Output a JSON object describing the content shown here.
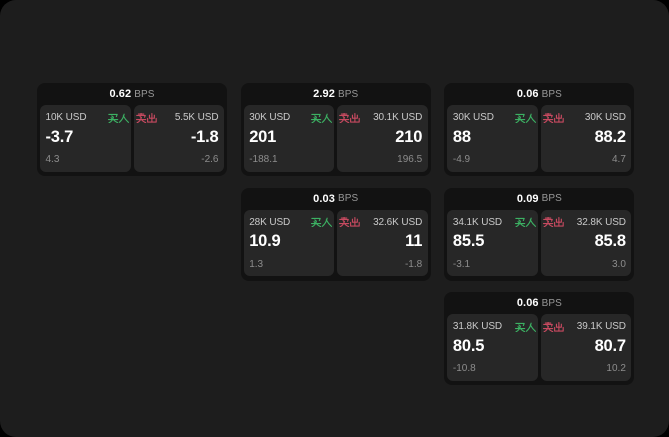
{
  "page": {
    "background_color": "#000000",
    "panel_color": "#1d1d1d",
    "card_color": "#121212",
    "tile_color": "#272727",
    "buy_color": "#3cb163",
    "sell_color": "#c74a60"
  },
  "labels": {
    "bps_unit": "BPS",
    "buy": "买入",
    "sell": "卖出"
  },
  "cards": [
    {
      "row": 0,
      "col": 0,
      "bps": "0.62",
      "buy": {
        "amount": "10K USD",
        "price": "-3.7",
        "delta": "4.3"
      },
      "sell": {
        "amount": "5.5K USD",
        "price": "-1.8",
        "delta": "-2.6"
      }
    },
    {
      "row": 0,
      "col": 1,
      "bps": "2.92",
      "buy": {
        "amount": "30K USD",
        "price": "201",
        "delta": "-188.1"
      },
      "sell": {
        "amount": "30.1K USD",
        "price": "210",
        "delta": "196.5"
      }
    },
    {
      "row": 0,
      "col": 2,
      "bps": "0.06",
      "buy": {
        "amount": "30K USD",
        "price": "88",
        "delta": "-4.9"
      },
      "sell": {
        "amount": "30K USD",
        "price": "88.2",
        "delta": "4.7"
      }
    },
    {
      "row": 1,
      "col": 1,
      "bps": "0.03",
      "buy": {
        "amount": "28K USD",
        "price": "10.9",
        "delta": "1.3"
      },
      "sell": {
        "amount": "32.6K USD",
        "price": "11",
        "delta": "-1.8"
      }
    },
    {
      "row": 1,
      "col": 2,
      "bps": "0.09",
      "buy": {
        "amount": "34.1K USD",
        "price": "85.5",
        "delta": "-3.1"
      },
      "sell": {
        "amount": "32.8K USD",
        "price": "85.8",
        "delta": "3.0"
      }
    },
    {
      "row": 2,
      "col": 2,
      "bps": "0.06",
      "buy": {
        "amount": "31.8K USD",
        "price": "80.5",
        "delta": "-10.8"
      },
      "sell": {
        "amount": "39.1K USD",
        "price": "80.7",
        "delta": "10.2"
      }
    }
  ]
}
